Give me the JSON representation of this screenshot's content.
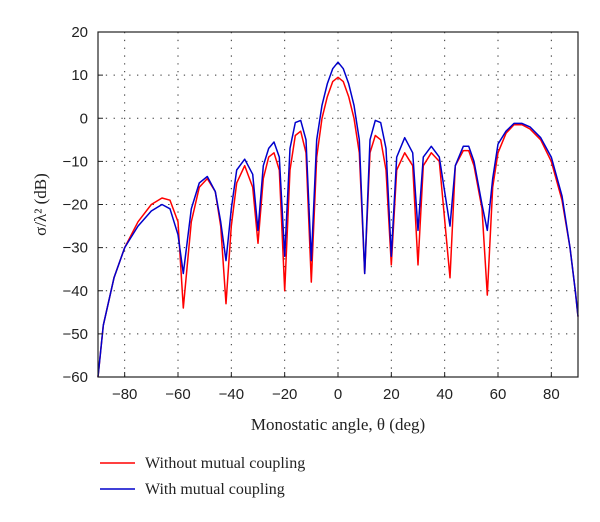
{
  "chart_data": {
    "type": "line",
    "xlabel": "Monostatic angle, θ (deg)",
    "ylabel": "σ/λ² (dB)",
    "xlim": [
      -90,
      90
    ],
    "ylim": [
      -60,
      20
    ],
    "xticks": [
      -80,
      -60,
      -40,
      -20,
      0,
      20,
      40,
      60,
      80
    ],
    "yticks": [
      -60,
      -50,
      -40,
      -30,
      -20,
      -10,
      0,
      10,
      20
    ],
    "grid": true,
    "legend_position": "bottom-left",
    "series": [
      {
        "name": "Without mutual coupling",
        "color": "#ff0000",
        "x": [
          -90,
          -88,
          -84,
          -80,
          -75,
          -70,
          -66,
          -63,
          -60,
          -58,
          -55,
          -52,
          -49,
          -46,
          -44,
          -42,
          -40,
          -38,
          -35,
          -32,
          -30,
          -28,
          -26,
          -24,
          -22,
          -20,
          -18,
          -16,
          -14,
          -12,
          -10,
          -8,
          -6,
          -4,
          -2,
          0,
          2,
          4,
          6,
          8,
          10,
          12,
          14,
          16,
          18,
          20,
          22,
          25,
          28,
          30,
          32,
          35,
          38,
          42,
          44,
          47,
          49,
          51,
          54,
          56,
          58,
          60,
          63,
          66,
          69,
          72,
          76,
          80,
          84,
          87,
          89,
          90
        ],
        "y": [
          -60,
          -48,
          -37,
          -30,
          -24,
          -20,
          -18.5,
          -19,
          -24,
          -44,
          -24,
          -16,
          -14,
          -17,
          -25,
          -43,
          -25,
          -15,
          -11,
          -16,
          -29,
          -14,
          -9,
          -8,
          -12,
          -40,
          -12,
          -4,
          -3,
          -8,
          -38,
          -9,
          0,
          5,
          8.5,
          9.5,
          8.5,
          5,
          0,
          -8,
          -36,
          -8,
          -4,
          -5,
          -12,
          -34,
          -12,
          -8,
          -11,
          -34,
          -11,
          -8,
          -10,
          -37,
          -11,
          -7.5,
          -7.5,
          -11,
          -21,
          -41,
          -16,
          -8,
          -3.5,
          -1.5,
          -1.5,
          -2.5,
          -5,
          -10,
          -19,
          -30,
          -40,
          -46
        ]
      },
      {
        "name": "With mutual coupling",
        "color": "#0000cc",
        "x": [
          -90,
          -88,
          -84,
          -80,
          -75,
          -70,
          -66,
          -63,
          -60,
          -58,
          -55,
          -52,
          -49,
          -46,
          -44,
          -42,
          -40,
          -38,
          -35,
          -32,
          -30,
          -28,
          -26,
          -24,
          -22,
          -20,
          -18,
          -16,
          -14,
          -12,
          -10,
          -8,
          -6,
          -4,
          -2,
          0,
          2,
          4,
          6,
          8,
          10,
          12,
          14,
          16,
          18,
          20,
          22,
          25,
          28,
          30,
          32,
          35,
          38,
          42,
          44,
          47,
          49,
          51,
          54,
          56,
          58,
          60,
          63,
          66,
          69,
          72,
          76,
          80,
          84,
          87,
          89,
          90
        ],
        "y": [
          -60,
          -48,
          -37,
          -30,
          -25,
          -21.5,
          -20,
          -21,
          -27,
          -36,
          -21,
          -15,
          -13.5,
          -17,
          -24,
          -33,
          -21,
          -12,
          -9.5,
          -13,
          -26,
          -11,
          -7,
          -5.5,
          -9,
          -32,
          -7,
          -1,
          -0.5,
          -5,
          -33,
          -5,
          3,
          8,
          11.5,
          13,
          11.5,
          8,
          3,
          -5,
          -36,
          -5,
          -0.5,
          -1,
          -7,
          -32,
          -9,
          -4.5,
          -8,
          -26,
          -9,
          -6.5,
          -9,
          -25,
          -11,
          -6.5,
          -6.5,
          -10,
          -20,
          -26,
          -14,
          -6,
          -3,
          -1.2,
          -1.2,
          -2,
          -4.5,
          -9,
          -18,
          -30,
          -40,
          -46
        ]
      }
    ]
  }
}
